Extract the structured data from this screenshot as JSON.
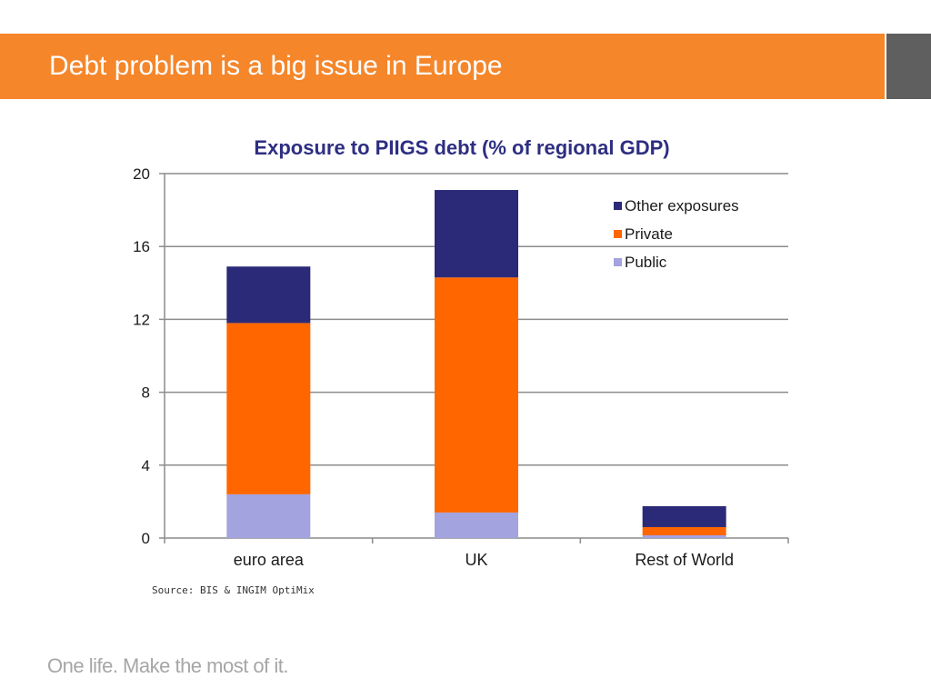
{
  "slide": {
    "title": "Debt problem is a big issue in Europe",
    "source": "Source: BIS & INGIM OptiMix",
    "tagline": "One life. Make the most of it."
  },
  "colors": {
    "header": "#f5862a",
    "header_accent": "#5f5f5f",
    "title_text": "#2e2e82"
  },
  "chart_data": {
    "type": "bar",
    "stacked": true,
    "title": "Exposure to PIIGS debt (% of regional GDP)",
    "xlabel": "",
    "ylabel": "",
    "categories": [
      "euro area",
      "UK",
      "Rest of World"
    ],
    "series": [
      {
        "name": "Public",
        "values": [
          2.4,
          1.4,
          0.15
        ],
        "color": "#a3a3e0"
      },
      {
        "name": "Private",
        "values": [
          9.4,
          12.9,
          0.45
        ],
        "color": "#ff6600"
      },
      {
        "name": "Other exposures",
        "values": [
          3.1,
          4.8,
          1.15
        ],
        "color": "#2a2a78"
      }
    ],
    "legend_order": [
      "Other exposures",
      "Private",
      "Public"
    ],
    "legend_position": "top-right",
    "ylim": [
      0,
      20
    ],
    "yticks": [
      0,
      4,
      8,
      12,
      16,
      20
    ],
    "grid": true
  }
}
